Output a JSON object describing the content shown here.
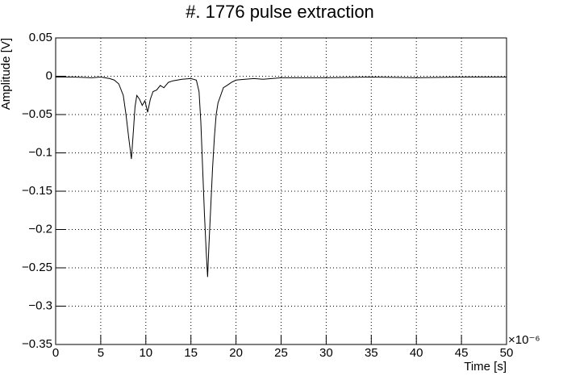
{
  "chart_data": {
    "type": "line",
    "title": "#. 1776 pulse extraction",
    "x_label": "Time [s]",
    "y_label": "Amplitude [V]",
    "x_exponent": "×10⁻⁶",
    "x": [
      0,
      2,
      4,
      5,
      6,
      6.5,
      7,
      7.5,
      7.8,
      8.1,
      8.4,
      8.6,
      8.8,
      9.0,
      9.3,
      9.6,
      9.9,
      10.2,
      10.5,
      10.8,
      11.2,
      11.6,
      12,
      12.5,
      13,
      14,
      15,
      15.6,
      15.9,
      16.1,
      16.3,
      16.5,
      16.7,
      16.85,
      17.0,
      17.2,
      17.4,
      17.6,
      17.8,
      18.0,
      18.3,
      18.6,
      19,
      19.5,
      20,
      21,
      22,
      23,
      25,
      30,
      35,
      40,
      45,
      50
    ],
    "values": [
      -0.001,
      -0.001,
      -0.002,
      -0.001,
      -0.003,
      -0.005,
      -0.01,
      -0.025,
      -0.05,
      -0.08,
      -0.108,
      -0.075,
      -0.04,
      -0.025,
      -0.03,
      -0.038,
      -0.032,
      -0.047,
      -0.03,
      -0.02,
      -0.018,
      -0.012,
      -0.015,
      -0.008,
      -0.006,
      -0.004,
      -0.003,
      -0.005,
      -0.02,
      -0.06,
      -0.12,
      -0.18,
      -0.23,
      -0.262,
      -0.22,
      -0.17,
      -0.12,
      -0.08,
      -0.05,
      -0.035,
      -0.025,
      -0.015,
      -0.012,
      -0.008,
      -0.005,
      -0.004,
      -0.003,
      -0.004,
      -0.002,
      -0.002,
      -0.001,
      -0.002,
      -0.001,
      -0.001
    ],
    "color": "#000000",
    "xlim": [
      0,
      50
    ],
    "xticks": [
      0,
      5,
      10,
      15,
      20,
      25,
      30,
      35,
      40,
      45,
      50
    ],
    "ylim": [
      -0.35,
      0.05
    ],
    "yticks": [
      {
        "value": -0.35,
        "label": "−0.35"
      },
      {
        "value": -0.3,
        "label": "−0.3"
      },
      {
        "value": -0.25,
        "label": "−0.25"
      },
      {
        "value": -0.2,
        "label": "−0.2"
      },
      {
        "value": -0.15,
        "label": "−0.15"
      },
      {
        "value": -0.1,
        "label": "−0.1"
      },
      {
        "value": -0.05,
        "label": "−0.05"
      },
      0,
      0.05
    ],
    "grid": true
  }
}
